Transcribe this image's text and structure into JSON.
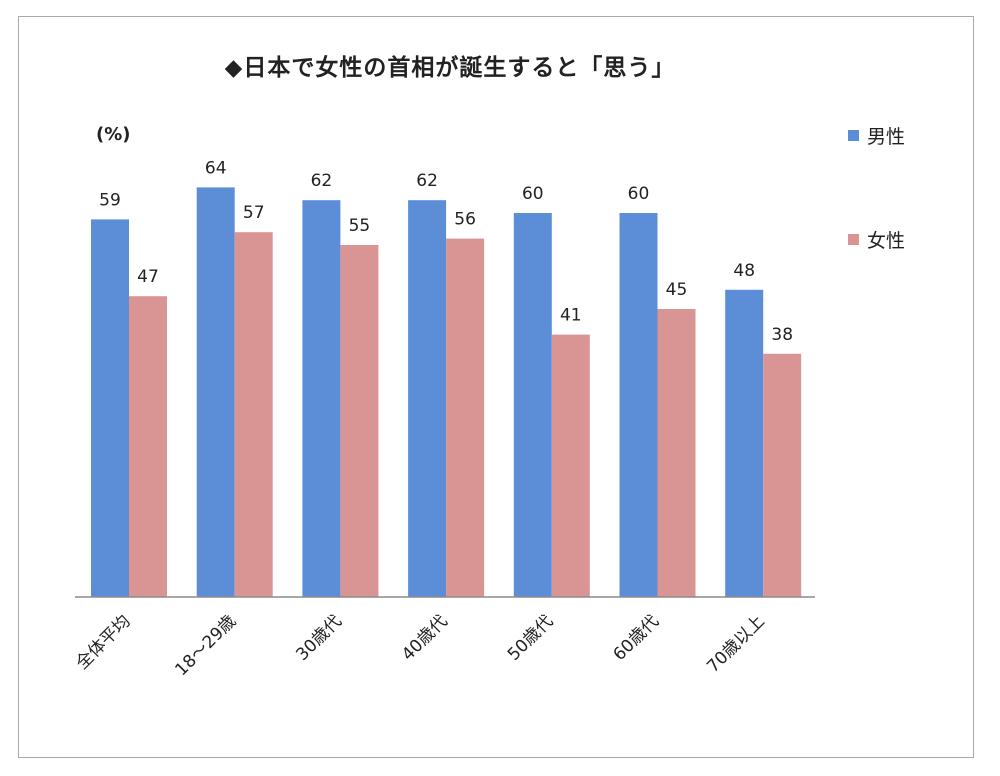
{
  "chart_data": {
    "type": "bar",
    "title": "◆日本で女性の首相が誕生すると「思う」",
    "unit_label": "(%)",
    "categories": [
      "全体平均",
      "18～29歳",
      "30歳代",
      "40歳代",
      "50歳代",
      "60歳代",
      "70歳以上"
    ],
    "series": [
      {
        "name": "男性",
        "color": "#5B8ED6",
        "values": [
          59,
          64,
          62,
          62,
          60,
          60,
          48
        ]
      },
      {
        "name": "女性",
        "color": "#D99594",
        "values": [
          47,
          57,
          55,
          56,
          41,
          45,
          38
        ]
      }
    ],
    "ylim": [
      0,
      70
    ],
    "grid": false,
    "legend_position": "right"
  }
}
